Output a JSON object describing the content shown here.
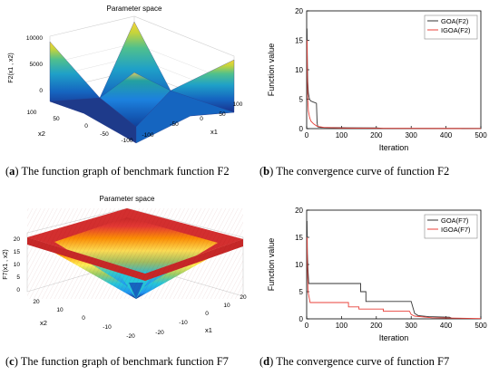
{
  "chart_data": [
    {
      "type": "surface",
      "title": "Parameter space",
      "zlabel": "F2(x1 , x2)",
      "xlabel": "x1",
      "ylabel": "x2",
      "x_ticks": [
        "-100",
        "-50",
        "0",
        "50",
        "100"
      ],
      "y_ticks": [
        "100",
        "50",
        "0",
        "-50",
        "-100"
      ],
      "z_ticks": [
        "0",
        "5000",
        "10000"
      ],
      "zlim": [
        0,
        10000
      ],
      "colormap": [
        "#1a237e",
        "#1565c0",
        "#1fa0c8",
        "#4fc08d",
        "#c8d43a",
        "#f6d238"
      ]
    },
    {
      "type": "line",
      "xlabel": "Iteration",
      "ylabel": "Function value",
      "xlim": [
        0,
        500
      ],
      "ylim": [
        0,
        20
      ],
      "x_ticks": [
        "0",
        "100",
        "200",
        "300",
        "400",
        "500"
      ],
      "y_ticks": [
        "0",
        "5",
        "10",
        "15",
        "20"
      ],
      "legend_position": "top-right",
      "series": [
        {
          "name": "GOA(F2)",
          "color": "#333333",
          "points": [
            [
              1,
              17
            ],
            [
              2,
              11
            ],
            [
              3,
              8
            ],
            [
              5,
              6
            ],
            [
              8,
              5
            ],
            [
              12,
              4.7
            ],
            [
              20,
              4.5
            ],
            [
              28,
              4.3
            ],
            [
              30,
              1
            ],
            [
              32,
              0.3
            ],
            [
              40,
              0.2
            ],
            [
              100,
              0.15
            ],
            [
              200,
              0.12
            ],
            [
              220,
              0.05
            ],
            [
              500,
              0.05
            ]
          ]
        },
        {
          "name": "IGOA(F2)",
          "color": "#e8413a",
          "points": [
            [
              1,
              15
            ],
            [
              2,
              9
            ],
            [
              3,
              5
            ],
            [
              5,
              3
            ],
            [
              8,
              2
            ],
            [
              12,
              1.3
            ],
            [
              20,
              0.8
            ],
            [
              30,
              0.4
            ],
            [
              50,
              0.2
            ],
            [
              100,
              0.1
            ],
            [
              200,
              0.05
            ],
            [
              500,
              0.02
            ]
          ]
        }
      ]
    },
    {
      "type": "surface",
      "title": "Parameter space",
      "zlabel": "F7(x1 , x2)",
      "xlabel": "x1",
      "ylabel": "x2",
      "x_ticks": [
        "-20",
        "-10",
        "0",
        "10",
        "20"
      ],
      "y_ticks": [
        "20",
        "10",
        "0",
        "-10",
        "-20"
      ],
      "z_ticks": [
        "0",
        "5",
        "10",
        "15",
        "20"
      ],
      "zlim": [
        0,
        20
      ],
      "colormap": [
        "#1a237e",
        "#2196f3",
        "#26c6da",
        "#9ccc65",
        "#ffee58",
        "#ff9800",
        "#e53935",
        "#c62828"
      ]
    },
    {
      "type": "line",
      "xlabel": "Iteration",
      "ylabel": "Function value",
      "xlim": [
        0,
        500
      ],
      "ylim": [
        0,
        20
      ],
      "x_ticks": [
        "0",
        "100",
        "200",
        "300",
        "400",
        "500"
      ],
      "y_ticks": [
        "0",
        "5",
        "10",
        "15",
        "20"
      ],
      "legend_position": "top-right",
      "series": [
        {
          "name": "GOA(F7)",
          "color": "#333333",
          "points": [
            [
              1,
              18
            ],
            [
              2,
              12
            ],
            [
              4,
              9
            ],
            [
              6,
              6.5
            ],
            [
              100,
              6.5
            ],
            [
              100,
              6.5
            ],
            [
              155,
              6.5
            ],
            [
              155,
              5
            ],
            [
              170,
              5
            ],
            [
              170,
              3.2
            ],
            [
              300,
              3.2
            ],
            [
              310,
              1
            ],
            [
              320,
              0.6
            ],
            [
              350,
              0.4
            ],
            [
              410,
              0.3
            ],
            [
              420,
              0
            ],
            [
              500,
              0
            ]
          ]
        },
        {
          "name": "IGOA(F7)",
          "color": "#e8413a",
          "points": [
            [
              1,
              15
            ],
            [
              2,
              10
            ],
            [
              4,
              5
            ],
            [
              10,
              3
            ],
            [
              120,
              3
            ],
            [
              120,
              2.2
            ],
            [
              150,
              2.2
            ],
            [
              150,
              1.8
            ],
            [
              220,
              1.8
            ],
            [
              220,
              1.4
            ],
            [
              295,
              1.4
            ],
            [
              300,
              0.8
            ],
            [
              310,
              0.5
            ],
            [
              360,
              0.2
            ],
            [
              500,
              0.05
            ]
          ]
        }
      ]
    }
  ],
  "captions": [
    {
      "letter": "a",
      "text": "The function graph of benchmark function F2"
    },
    {
      "letter": "b",
      "text": "The convergence curve of function F2"
    },
    {
      "letter": "c",
      "text": "The function graph of benchmark function F7"
    },
    {
      "letter": "d",
      "text": "The convergence curve of function F7"
    }
  ]
}
